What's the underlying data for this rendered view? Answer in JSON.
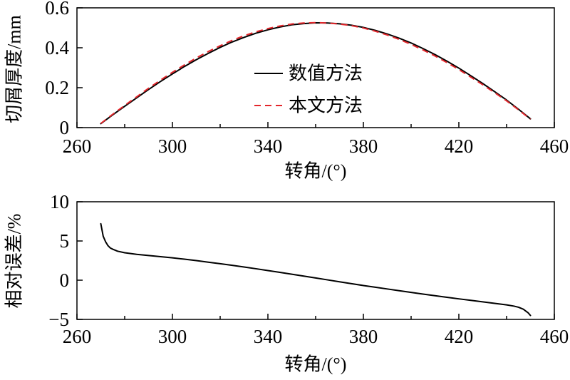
{
  "chart_data": [
    {
      "type": "line",
      "xlabel": "转角/(°)",
      "ylabel": "切屑厚度/mm",
      "xlim": [
        260,
        460
      ],
      "ylim": [
        0,
        0.6
      ],
      "xticks": [
        260,
        300,
        340,
        380,
        420,
        460
      ],
      "xtick_labels": [
        "260",
        "300",
        "340",
        "380",
        "420",
        "460"
      ],
      "yticks": [
        0,
        0.2,
        0.4,
        0.6
      ],
      "ytick_labels": [
        "0",
        "0.2",
        "0.4",
        "0.6"
      ],
      "grid": false,
      "legend": "center",
      "x": [
        270,
        275,
        280,
        285,
        290,
        295,
        300,
        305,
        310,
        315,
        320,
        325,
        330,
        335,
        340,
        345,
        350,
        355,
        360,
        365,
        370,
        375,
        380,
        385,
        390,
        395,
        400,
        405,
        410,
        415,
        420,
        425,
        430,
        435,
        440,
        445,
        450
      ],
      "series": [
        {
          "name": "数值方法",
          "color": "#000000",
          "dashed": false,
          "values": [
            0.02,
            0.064,
            0.107,
            0.149,
            0.191,
            0.231,
            0.269,
            0.306,
            0.34,
            0.372,
            0.402,
            0.429,
            0.452,
            0.473,
            0.49,
            0.504,
            0.515,
            0.521,
            0.525,
            0.524,
            0.52,
            0.513,
            0.502,
            0.487,
            0.469,
            0.448,
            0.424,
            0.396,
            0.366,
            0.333,
            0.298,
            0.26,
            0.221,
            0.18,
            0.138,
            0.092,
            0.044
          ]
        },
        {
          "name": "本文方法",
          "color": "#e3262b",
          "dashed": true,
          "values": [
            0.021,
            0.067,
            0.111,
            0.154,
            0.197,
            0.238,
            0.277,
            0.314,
            0.349,
            0.381,
            0.41,
            0.437,
            0.46,
            0.48,
            0.496,
            0.509,
            0.519,
            0.524,
            0.526,
            0.524,
            0.519,
            0.511,
            0.499,
            0.483,
            0.464,
            0.442,
            0.417,
            0.389,
            0.359,
            0.326,
            0.291,
            0.253,
            0.215,
            0.175,
            0.134,
            0.089,
            0.042
          ]
        }
      ]
    },
    {
      "type": "line",
      "xlabel": "转角/(°)",
      "ylabel": "相对误差/%",
      "xlim": [
        260,
        460
      ],
      "ylim": [
        -5,
        10
      ],
      "xticks": [
        260,
        300,
        340,
        380,
        420,
        460
      ],
      "xtick_labels": [
        "260",
        "300",
        "340",
        "380",
        "420",
        "460"
      ],
      "yticks": [
        -5,
        0,
        5,
        10
      ],
      "ytick_labels": [
        "−5",
        "0",
        "5",
        "10"
      ],
      "grid": false,
      "x": [
        270,
        271,
        272,
        273,
        274,
        275,
        277,
        280,
        285,
        290,
        295,
        300,
        305,
        310,
        315,
        320,
        325,
        330,
        335,
        340,
        345,
        350,
        355,
        360,
        365,
        370,
        375,
        380,
        385,
        390,
        395,
        400,
        405,
        410,
        415,
        420,
        425,
        430,
        435,
        440,
        443,
        445,
        447,
        449,
        450
      ],
      "series": [
        {
          "color": "#000000",
          "dashed": false,
          "values": [
            7.2,
            5.6,
            4.9,
            4.4,
            4.1,
            3.95,
            3.7,
            3.5,
            3.3,
            3.15,
            3.0,
            2.85,
            2.68,
            2.5,
            2.3,
            2.1,
            1.9,
            1.68,
            1.46,
            1.23,
            1.0,
            0.76,
            0.52,
            0.28,
            0.04,
            -0.2,
            -0.44,
            -0.68,
            -0.9,
            -1.12,
            -1.34,
            -1.56,
            -1.77,
            -1.98,
            -2.18,
            -2.38,
            -2.57,
            -2.76,
            -2.95,
            -3.15,
            -3.3,
            -3.45,
            -3.7,
            -4.15,
            -4.5
          ]
        }
      ]
    }
  ]
}
